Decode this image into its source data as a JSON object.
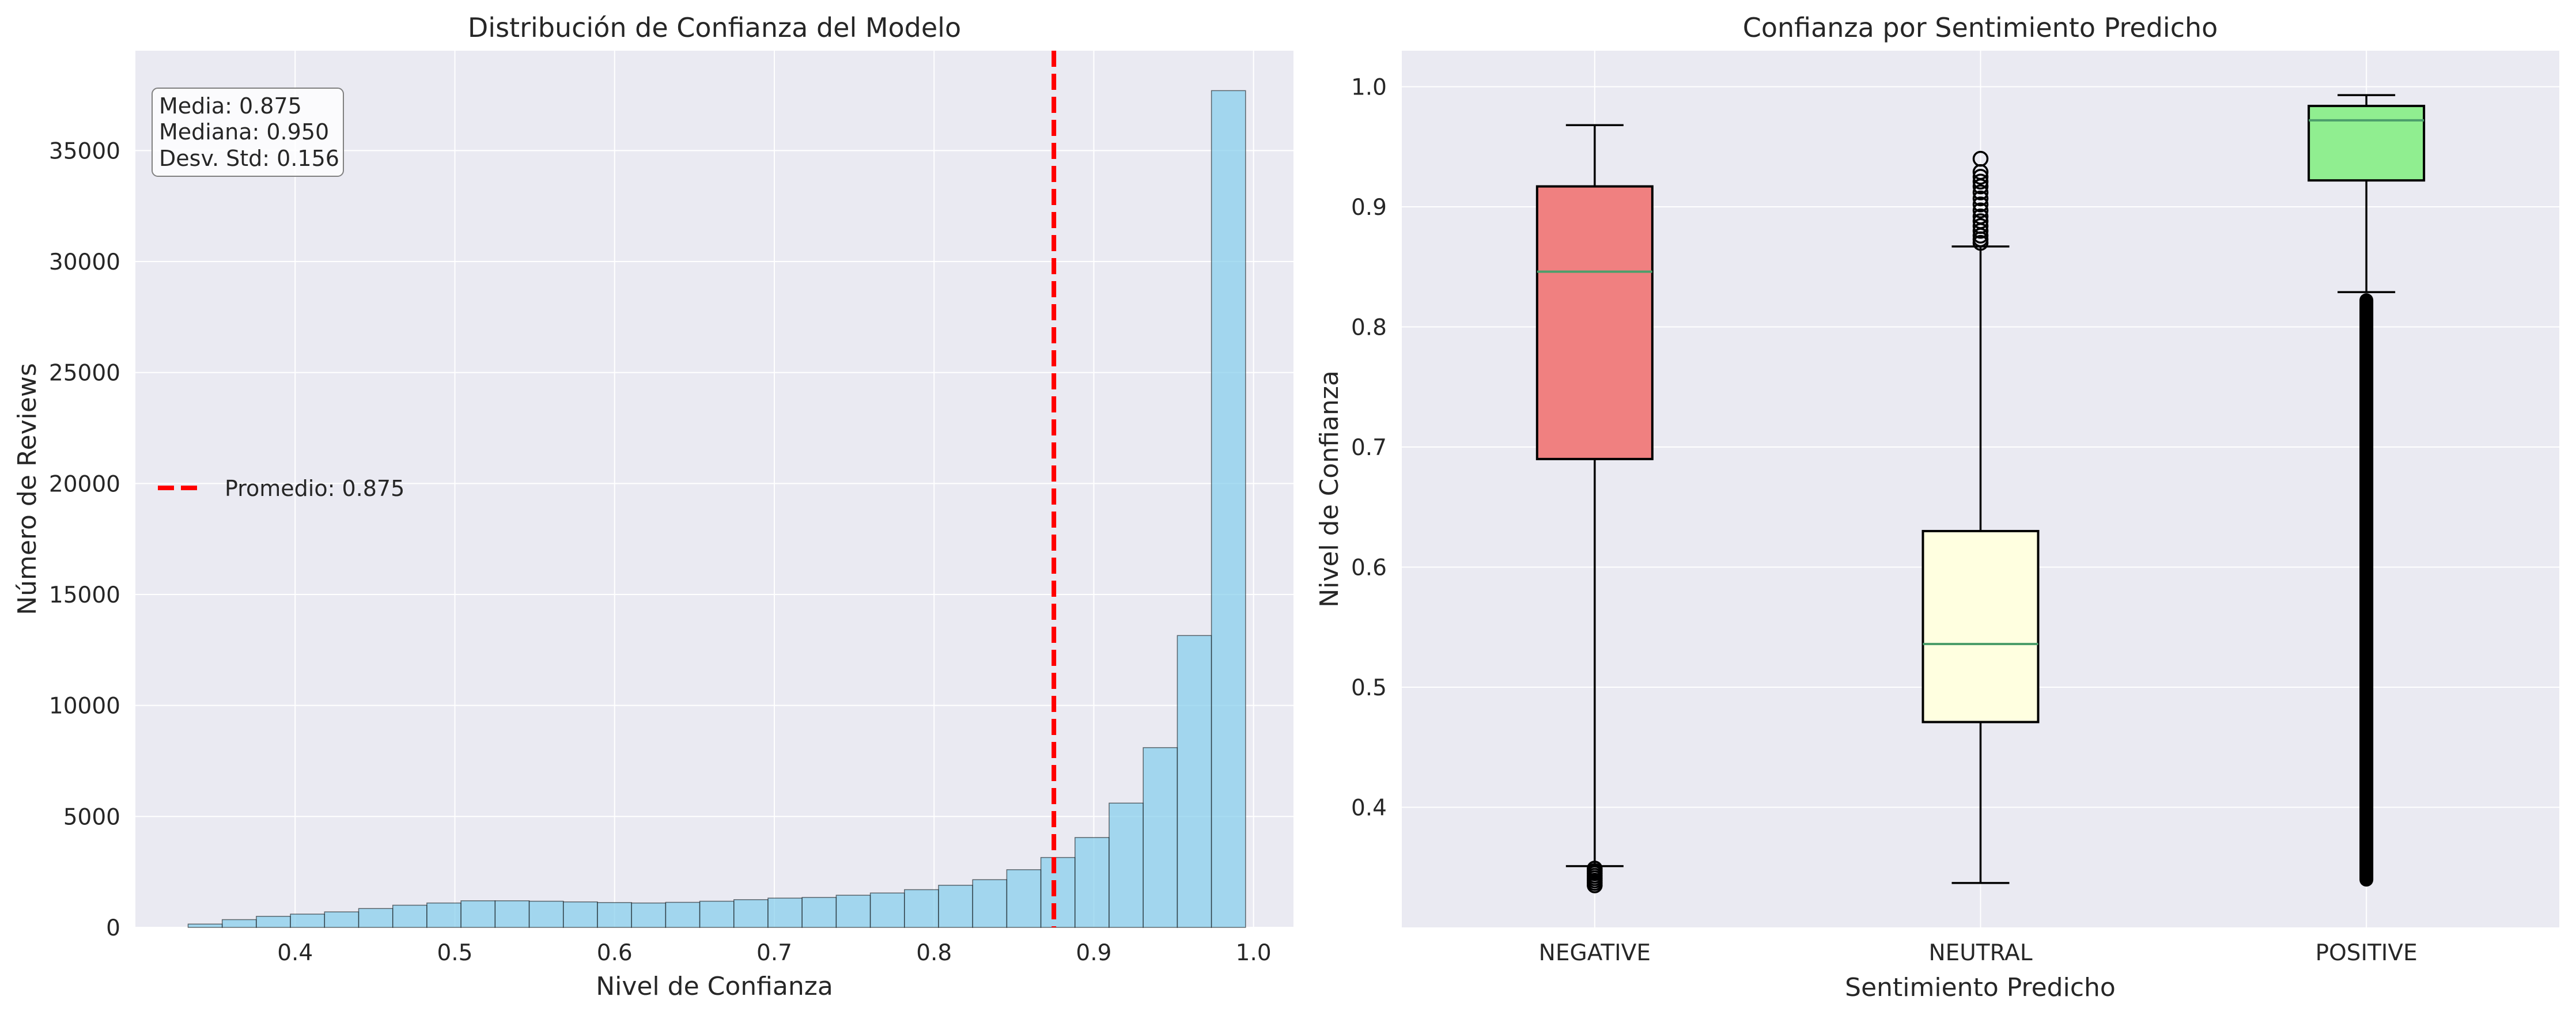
{
  "chart_data": [
    {
      "type": "bar",
      "title": "Distribución de Confianza del Modelo",
      "xlabel": "Nivel de Confianza",
      "ylabel": "Número de Reviews",
      "xlim": [
        0.3,
        1.025
      ],
      "ylim": [
        0,
        39500
      ],
      "xticks": [
        "0.4",
        "0.5",
        "0.6",
        "0.7",
        "0.8",
        "0.9",
        "1.0"
      ],
      "yticks": [
        "0",
        "5000",
        "10000",
        "15000",
        "20000",
        "25000",
        "30000",
        "35000"
      ],
      "grid": true,
      "bin_range": [
        0.333,
        0.995
      ],
      "counts": [
        150,
        350,
        500,
        600,
        700,
        850,
        1000,
        1100,
        1200,
        1200,
        1180,
        1150,
        1120,
        1100,
        1130,
        1180,
        1250,
        1320,
        1350,
        1450,
        1550,
        1700,
        1900,
        2150,
        2600,
        3150,
        4050,
        5600,
        8100,
        13150,
        37700
      ],
      "bar_color": "#87ceeb",
      "mean_line": {
        "value": 0.875,
        "color": "#ff0000",
        "label": "Promedio: 0.875"
      },
      "legend_position": "center-left",
      "stats": [
        "Media: 0.875",
        "Mediana: 0.950",
        "Desv. Std: 0.156"
      ]
    },
    {
      "type": "box",
      "title": "Confianza por Sentimiento Predicho",
      "xlabel": "Sentimiento Predicho",
      "ylabel": "Nivel de Confianza",
      "ylim": [
        0.3,
        1.03
      ],
      "yticks": [
        "0.4",
        "0.5",
        "0.6",
        "0.7",
        "0.8",
        "0.9",
        "1.0"
      ],
      "grid": true,
      "categories": [
        "NEGATIVE",
        "NEUTRAL",
        "POSITIVE"
      ],
      "boxes": [
        {
          "q1": 0.69,
          "median": 0.846,
          "q3": 0.917,
          "whisker_low": 0.351,
          "whisker_high": 0.968,
          "color": "#f08080",
          "outliers": [
            0.335,
            0.337,
            0.339,
            0.341,
            0.343,
            0.345,
            0.347,
            0.349
          ]
        },
        {
          "q1": 0.471,
          "median": 0.536,
          "q3": 0.63,
          "whisker_low": 0.337,
          "whisker_high": 0.867,
          "color": "#ffffe0",
          "outliers": [
            0.87,
            0.873,
            0.876,
            0.88,
            0.884,
            0.888,
            0.892,
            0.897,
            0.902,
            0.907,
            0.912,
            0.917,
            0.921,
            0.925,
            0.929,
            0.94
          ]
        },
        {
          "q1": 0.922,
          "median": 0.972,
          "q3": 0.984,
          "whisker_low": 0.829,
          "whisker_high": 0.993,
          "color": "#90ee90",
          "outlier_range": [
            0.334,
            0.828
          ]
        }
      ]
    }
  ]
}
